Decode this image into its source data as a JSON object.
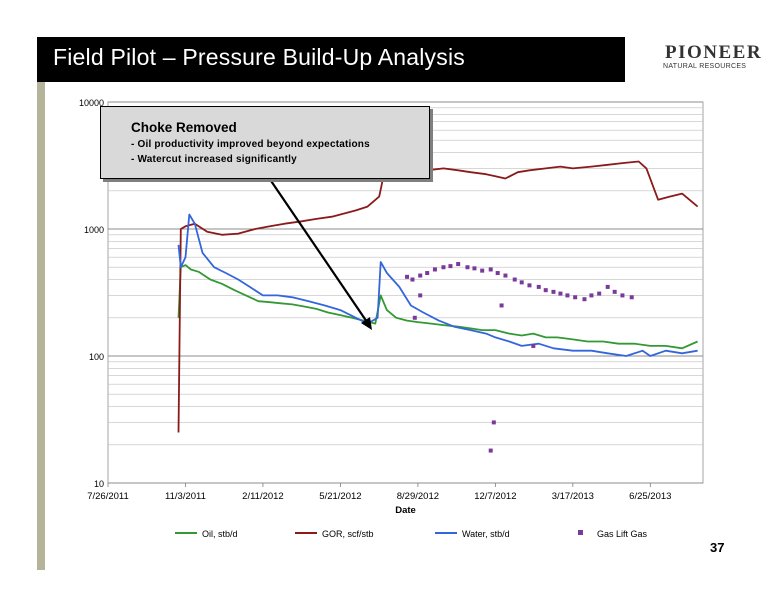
{
  "slide": {
    "title": "Field Pilot – Pressure Build-Up Analysis",
    "logo_main": "PIONEER",
    "logo_sub": "NATURAL RESOURCES",
    "page_number": "37"
  },
  "callout": {
    "title": "Choke Removed",
    "line1": "- Oil productivity improved beyond expectations",
    "line2": "- Watercut increased significantly"
  },
  "colors": {
    "oil": "#339933",
    "gor": "#8b1a1a",
    "water": "#3366dd",
    "gas_lift": "#7a3a9a",
    "grid": "#bfbfbf",
    "header": "#000000",
    "left_bar": "#b5b49a"
  },
  "chart_data": {
    "type": "line",
    "yscale": "log",
    "ylim": [
      10,
      10000
    ],
    "ytick_labels": [
      "10",
      "100",
      "1000",
      "10000"
    ],
    "xlim": [
      "2011-07-26",
      "2013-09-01"
    ],
    "xtick_labels": [
      "7/26/2011",
      "11/3/2011",
      "2/11/2012",
      "5/21/2012",
      "8/29/2012",
      "12/7/2012",
      "3/17/2013",
      "6/25/2013"
    ],
    "xlabel": "Date",
    "ylabel": "",
    "grid": true,
    "legend_position": "bottom",
    "series": [
      {
        "name": "Oil, stb/d",
        "values": [
          [
            "2011-10-25",
            200
          ],
          [
            "2011-10-28",
            500
          ],
          [
            "2011-11-03",
            520
          ],
          [
            "2011-11-10",
            480
          ],
          [
            "2011-11-20",
            460
          ],
          [
            "2011-12-05",
            400
          ],
          [
            "2011-12-20",
            370
          ],
          [
            "2012-01-05",
            330
          ],
          [
            "2012-01-20",
            300
          ],
          [
            "2012-02-05",
            270
          ],
          [
            "2012-02-20",
            265
          ],
          [
            "2012-03-05",
            260
          ],
          [
            "2012-03-20",
            255
          ],
          [
            "2012-04-05",
            245
          ],
          [
            "2012-04-20",
            235
          ],
          [
            "2012-05-05",
            220
          ],
          [
            "2012-05-21",
            210
          ],
          [
            "2012-06-05",
            200
          ],
          [
            "2012-06-20",
            190
          ],
          [
            "2012-07-05",
            180
          ],
          [
            "2012-07-12",
            300
          ],
          [
            "2012-07-20",
            230
          ],
          [
            "2012-08-01",
            200
          ],
          [
            "2012-08-15",
            190
          ],
          [
            "2012-08-29",
            185
          ],
          [
            "2012-09-15",
            180
          ],
          [
            "2012-10-01",
            175
          ],
          [
            "2012-10-20",
            170
          ],
          [
            "2012-11-05",
            165
          ],
          [
            "2012-11-20",
            160
          ],
          [
            "2012-12-07",
            160
          ],
          [
            "2012-12-25",
            150
          ],
          [
            "2013-01-10",
            145
          ],
          [
            "2013-01-25",
            150
          ],
          [
            "2013-02-10",
            140
          ],
          [
            "2013-02-25",
            140
          ],
          [
            "2013-03-17",
            135
          ],
          [
            "2013-04-05",
            130
          ],
          [
            "2013-04-25",
            130
          ],
          [
            "2013-05-15",
            125
          ],
          [
            "2013-06-05",
            125
          ],
          [
            "2013-06-25",
            120
          ],
          [
            "2013-07-15",
            120
          ],
          [
            "2013-08-05",
            115
          ],
          [
            "2013-08-25",
            130
          ]
        ]
      },
      {
        "name": "GOR, scf/stb",
        "values": [
          [
            "2011-10-25",
            25
          ],
          [
            "2011-10-28",
            1000
          ],
          [
            "2011-11-03",
            1050
          ],
          [
            "2011-11-15",
            1100
          ],
          [
            "2011-12-01",
            950
          ],
          [
            "2011-12-20",
            900
          ],
          [
            "2012-01-10",
            920
          ],
          [
            "2012-02-01",
            1000
          ],
          [
            "2012-02-20",
            1050
          ],
          [
            "2012-03-10",
            1100
          ],
          [
            "2012-04-01",
            1150
          ],
          [
            "2012-04-20",
            1200
          ],
          [
            "2012-05-10",
            1250
          ],
          [
            "2012-05-21",
            1300
          ],
          [
            "2012-06-10",
            1400
          ],
          [
            "2012-06-25",
            1500
          ],
          [
            "2012-07-10",
            1800
          ],
          [
            "2012-07-15",
            2500
          ],
          [
            "2012-08-01",
            2600
          ],
          [
            "2012-08-20",
            2800
          ],
          [
            "2012-09-10",
            2900
          ],
          [
            "2012-10-01",
            3000
          ],
          [
            "2012-10-20",
            2900
          ],
          [
            "2012-11-05",
            2800
          ],
          [
            "2012-11-25",
            2700
          ],
          [
            "2012-12-07",
            2600
          ],
          [
            "2012-12-20",
            2500
          ],
          [
            "2013-01-05",
            2800
          ],
          [
            "2013-01-20",
            2900
          ],
          [
            "2013-02-10",
            3000
          ],
          [
            "2013-03-01",
            3100
          ],
          [
            "2013-03-17",
            3000
          ],
          [
            "2013-04-10",
            3100
          ],
          [
            "2013-05-01",
            3200
          ],
          [
            "2013-05-20",
            3300
          ],
          [
            "2013-06-10",
            3400
          ],
          [
            "2013-06-20",
            3000
          ],
          [
            "2013-07-05",
            1700
          ],
          [
            "2013-07-20",
            1800
          ],
          [
            "2013-08-05",
            1900
          ],
          [
            "2013-08-25",
            1500
          ]
        ]
      },
      {
        "name": "Water, stb/d",
        "values": [
          [
            "2011-10-25",
            750
          ],
          [
            "2011-10-28",
            500
          ],
          [
            "2011-11-03",
            600
          ],
          [
            "2011-11-08",
            1300
          ],
          [
            "2011-11-15",
            1100
          ],
          [
            "2011-11-25",
            650
          ],
          [
            "2011-12-10",
            500
          ],
          [
            "2011-12-25",
            450
          ],
          [
            "2012-01-10",
            400
          ],
          [
            "2012-01-25",
            350
          ],
          [
            "2012-02-11",
            300
          ],
          [
            "2012-03-01",
            300
          ],
          [
            "2012-03-20",
            290
          ],
          [
            "2012-04-10",
            270
          ],
          [
            "2012-05-01",
            250
          ],
          [
            "2012-05-21",
            230
          ],
          [
            "2012-06-10",
            200
          ],
          [
            "2012-06-25",
            180
          ],
          [
            "2012-07-08",
            200
          ],
          [
            "2012-07-12",
            550
          ],
          [
            "2012-07-20",
            450
          ],
          [
            "2012-08-05",
            350
          ],
          [
            "2012-08-20",
            250
          ],
          [
            "2012-09-05",
            220
          ],
          [
            "2012-09-25",
            190
          ],
          [
            "2012-10-15",
            170
          ],
          [
            "2012-11-05",
            160
          ],
          [
            "2012-11-25",
            150
          ],
          [
            "2012-12-07",
            140
          ],
          [
            "2012-12-25",
            130
          ],
          [
            "2013-01-10",
            120
          ],
          [
            "2013-02-01",
            125
          ],
          [
            "2013-02-20",
            115
          ],
          [
            "2013-03-17",
            110
          ],
          [
            "2013-04-10",
            110
          ],
          [
            "2013-05-01",
            105
          ],
          [
            "2013-05-25",
            100
          ],
          [
            "2013-06-15",
            110
          ],
          [
            "2013-06-25",
            100
          ],
          [
            "2013-07-15",
            110
          ],
          [
            "2013-08-05",
            105
          ],
          [
            "2013-08-25",
            110
          ]
        ]
      },
      {
        "name": "Gas Lift Gas",
        "marker": "square",
        "values": [
          [
            "2012-08-15",
            420
          ],
          [
            "2012-08-22",
            400
          ],
          [
            "2012-09-01",
            430
          ],
          [
            "2012-09-10",
            450
          ],
          [
            "2012-09-20",
            480
          ],
          [
            "2012-10-01",
            500
          ],
          [
            "2012-10-10",
            510
          ],
          [
            "2012-10-20",
            530
          ],
          [
            "2012-11-01",
            500
          ],
          [
            "2012-11-10",
            490
          ],
          [
            "2012-11-20",
            470
          ],
          [
            "2012-12-01",
            480
          ],
          [
            "2012-12-10",
            450
          ],
          [
            "2012-12-20",
            430
          ],
          [
            "2013-01-01",
            400
          ],
          [
            "2013-01-10",
            380
          ],
          [
            "2013-01-20",
            360
          ],
          [
            "2013-02-01",
            350
          ],
          [
            "2013-02-10",
            330
          ],
          [
            "2013-02-20",
            320
          ],
          [
            "2013-03-01",
            310
          ],
          [
            "2013-03-10",
            300
          ],
          [
            "2013-03-20",
            290
          ],
          [
            "2013-04-01",
            280
          ],
          [
            "2013-04-10",
            300
          ],
          [
            "2013-04-20",
            310
          ],
          [
            "2013-05-01",
            350
          ],
          [
            "2013-05-10",
            320
          ],
          [
            "2013-05-20",
            300
          ],
          [
            "2013-06-01",
            290
          ],
          [
            "2012-09-01",
            300
          ],
          [
            "2012-08-25",
            200
          ],
          [
            "2012-12-15",
            250
          ],
          [
            "2013-01-25",
            120
          ],
          [
            "2012-12-05",
            30
          ],
          [
            "2012-12-01",
            18
          ]
        ]
      }
    ]
  }
}
